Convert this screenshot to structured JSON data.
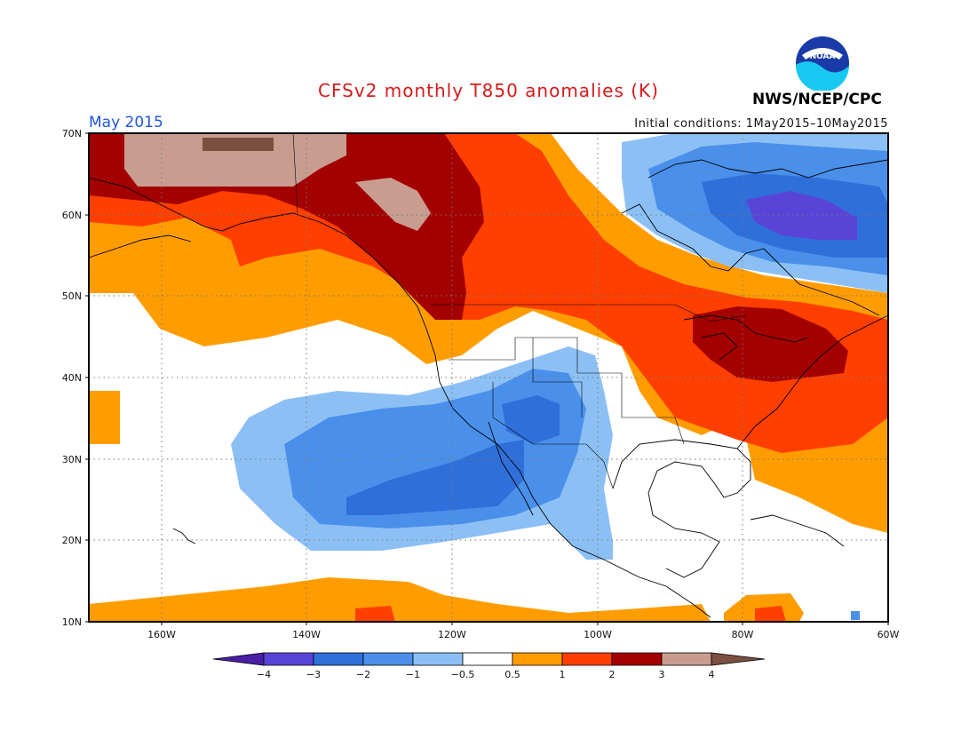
{
  "title": "CFSv2 monthly T850 anomalies (K)",
  "month": "May 2015",
  "initial_conditions": "Initial conditions: 1May2015–10May2015",
  "agency": "NWS/NCEP/CPC",
  "logo_icon": "noaa-logo-icon",
  "logo_text": "NOAA",
  "map": {
    "lon_range": [
      -170,
      -60
    ],
    "lat_range": [
      10,
      70
    ],
    "lat_labels": [
      "70N",
      "60N",
      "50N",
      "40N",
      "30N",
      "20N",
      "10N"
    ],
    "lon_labels": [
      "160W",
      "140W",
      "120W",
      "100W",
      "80W",
      "60W"
    ]
  },
  "colorbar": {
    "labels": [
      "−4",
      "−3",
      "−2",
      "−1",
      "−0.5",
      "0.5",
      "1",
      "2",
      "3",
      "4"
    ],
    "colors": [
      "#4a1fa6",
      "#5a44d8",
      "#2f6fd9",
      "#4a90ea",
      "#8cc0f5",
      "#ffffff",
      "#ff9d00",
      "#ff3f00",
      "#a30000",
      "#c89d90",
      "#7a5040"
    ]
  },
  "colors": {
    "title": "#d61a1a",
    "month": "#1f55e0"
  }
}
